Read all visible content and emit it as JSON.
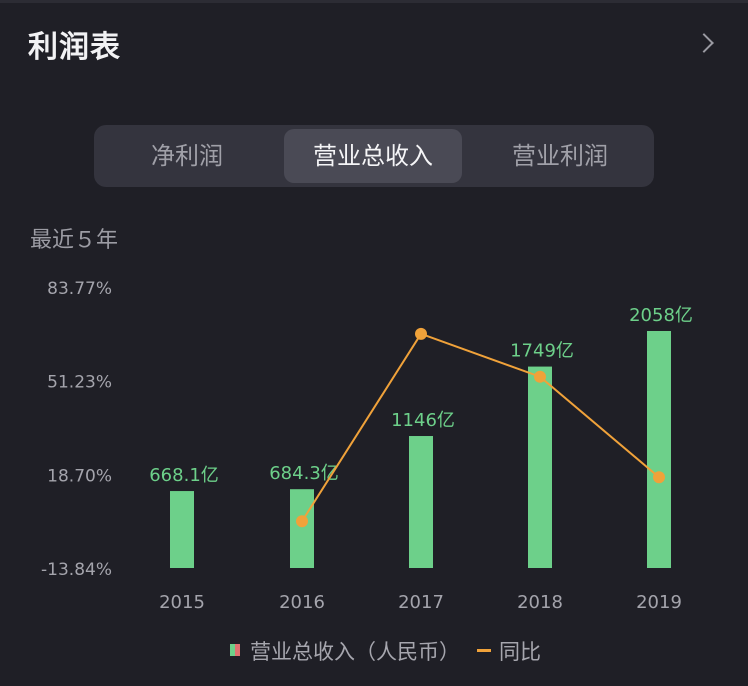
{
  "header": {
    "title": "利润表"
  },
  "tabs": [
    {
      "label": "净利润",
      "active": false
    },
    {
      "label": "营业总收入",
      "active": true
    },
    {
      "label": "营业利润",
      "active": false
    }
  ],
  "subtitle": "最近５年",
  "legend": {
    "bar_label": "营业总收入（人民币）",
    "line_label": "同比"
  },
  "colors": {
    "bar": "#6dd08a",
    "line": "#f0a23a",
    "background": "#1f1f26"
  },
  "chart_data": {
    "type": "bar",
    "categories": [
      "2015",
      "2016",
      "2017",
      "2018",
      "2019"
    ],
    "series": [
      {
        "name": "营业总收入（人民币）",
        "type": "bar",
        "values": [
          668.1,
          684.3,
          1146,
          1749,
          2058
        ],
        "labels": [
          "668.1亿",
          "684.3亿",
          "1146亿",
          "1749亿",
          "2058亿"
        ]
      },
      {
        "name": "同比",
        "type": "line",
        "values": [
          null,
          2.4,
          67.5,
          52.6,
          17.7
        ]
      }
    ],
    "y_ticks": [
      "83.77%",
      "51.23%",
      "18.70%",
      "-13.84%"
    ],
    "ylim": [
      -13.84,
      83.77
    ],
    "grid": false,
    "legend_position": "bottom"
  }
}
